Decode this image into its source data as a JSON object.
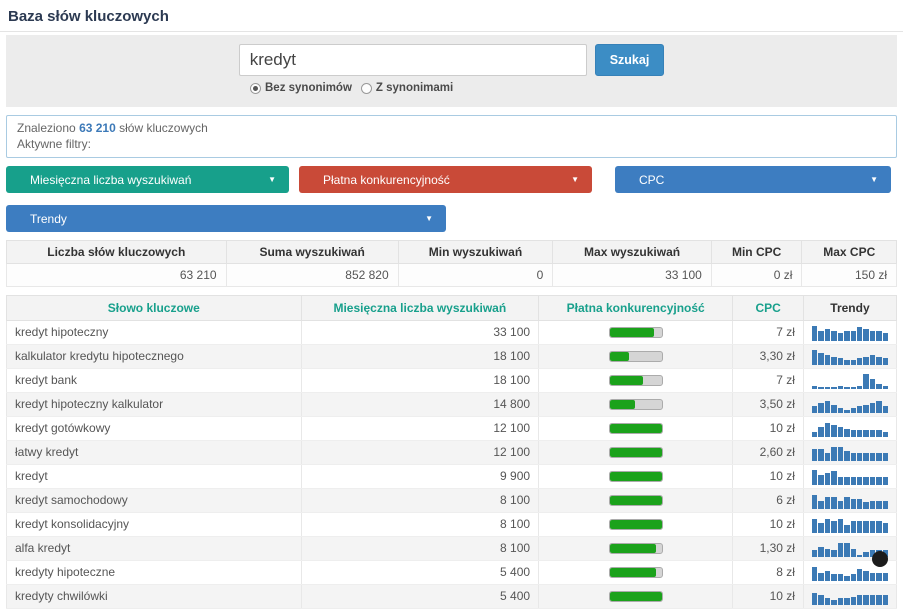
{
  "page": {
    "title": "Baza słów kluczowych"
  },
  "icons": {
    "caret_down": "▼"
  },
  "search": {
    "query": "kredyt",
    "button_label": "Szukaj",
    "radio_no_synonyms": "Bez synonimów",
    "radio_synonyms": "Z synonimami",
    "selected_radio": "Bez synonimów"
  },
  "results_info": {
    "found_prefix": "Znaleziono",
    "found_count": "63 210",
    "found_suffix": "słów kluczowych",
    "active_filters_label": "Aktywne filtry:"
  },
  "filters": [
    {
      "label": "Miesięczna liczba wyszukiwań",
      "color": "#17a08b"
    },
    {
      "label": "Płatna konkurencyjność",
      "color": "#c94a38"
    },
    {
      "label": "CPC",
      "color": "#3d7dc1"
    },
    {
      "label": "Trendy",
      "color": "#3d7dc1"
    }
  ],
  "summary_table": {
    "headers": [
      "Liczba słów kluczowych",
      "Suma wyszukiwań",
      "Min wyszukiwań",
      "Max wyszukiwań",
      "Min CPC",
      "Max CPC"
    ],
    "values": [
      "63 210",
      "852 820",
      "0",
      "33 100",
      "0 zł",
      "150 zł"
    ]
  },
  "main_table": {
    "headers": [
      "Słowo kluczowe",
      "Miesięczna liczba wyszukiwań",
      "Płatna konkurencyjność",
      "CPC",
      "Trendy"
    ],
    "rows": [
      {
        "keyword": "kredyt hipoteczny",
        "volume": "33 100",
        "competition_pct": 85,
        "cpc": "7 zł",
        "trend": [
          9,
          6,
          7,
          6,
          5,
          6,
          6,
          8,
          7,
          6,
          6,
          5
        ]
      },
      {
        "keyword": "kalkulator kredytu hipotecznego",
        "volume": "18 100",
        "competition_pct": 38,
        "cpc": "3,30 zł",
        "trend": [
          9,
          7,
          6,
          5,
          4,
          3,
          3,
          4,
          5,
          6,
          5,
          4
        ]
      },
      {
        "keyword": "kredyt bank",
        "volume": "18 100",
        "competition_pct": 65,
        "cpc": "7 zł",
        "trend": [
          2,
          1,
          1,
          1,
          2,
          1,
          1,
          2,
          9,
          6,
          3,
          2
        ]
      },
      {
        "keyword": "kredyt hipoteczny kalkulator",
        "volume": "14 800",
        "competition_pct": 48,
        "cpc": "3,50 zł",
        "trend": [
          4,
          6,
          7,
          5,
          3,
          2,
          3,
          4,
          5,
          6,
          7,
          4
        ]
      },
      {
        "keyword": "kredyt gotówkowy",
        "volume": "12 100",
        "competition_pct": 100,
        "cpc": "10 zł",
        "trend": [
          3,
          6,
          8,
          7,
          6,
          5,
          4,
          4,
          4,
          4,
          4,
          3
        ]
      },
      {
        "keyword": "łatwy kredyt",
        "volume": "12 100",
        "competition_pct": 100,
        "cpc": "2,60 zł",
        "trend": [
          7,
          7,
          5,
          8,
          8,
          6,
          5,
          5,
          5,
          5,
          5,
          5
        ]
      },
      {
        "keyword": "kredyt",
        "volume": "9 900",
        "competition_pct": 100,
        "cpc": "10 zł",
        "trend": [
          9,
          6,
          7,
          8,
          5,
          5,
          5,
          5,
          5,
          5,
          5,
          5
        ]
      },
      {
        "keyword": "kredyt samochodowy",
        "volume": "8 100",
        "competition_pct": 100,
        "cpc": "6 zł",
        "trend": [
          8,
          5,
          7,
          7,
          5,
          7,
          6,
          6,
          4,
          5,
          5,
          5
        ]
      },
      {
        "keyword": "kredyt konsolidacyjny",
        "volume": "8 100",
        "competition_pct": 100,
        "cpc": "10 zł",
        "trend": [
          8,
          6,
          8,
          7,
          8,
          5,
          7,
          7,
          7,
          7,
          7,
          6
        ]
      },
      {
        "keyword": "alfa kredyt",
        "volume": "8 100",
        "competition_pct": 90,
        "cpc": "1,30 zł",
        "trend": [
          4,
          6,
          5,
          4,
          8,
          8,
          5,
          1,
          3,
          4,
          4,
          4
        ]
      },
      {
        "keyword": "kredyty hipoteczne",
        "volume": "5 400",
        "competition_pct": 90,
        "cpc": "8 zł",
        "trend": [
          8,
          5,
          6,
          4,
          4,
          3,
          4,
          7,
          6,
          5,
          5,
          5
        ]
      },
      {
        "keyword": "kredyty chwilówki",
        "volume": "5 400",
        "competition_pct": 100,
        "cpc": "10 zł",
        "trend": [
          7,
          6,
          4,
          3,
          4,
          4,
          5,
          6,
          6,
          6,
          6,
          6
        ]
      }
    ]
  },
  "colors": {
    "accent_teal": "#17a08b",
    "accent_red": "#c94a38",
    "accent_blue": "#3d7dc1",
    "search_button_blue": "#3c8dc5",
    "competition_green": "#1ba21b",
    "trend_bar_blue": "#3c7ab5"
  }
}
